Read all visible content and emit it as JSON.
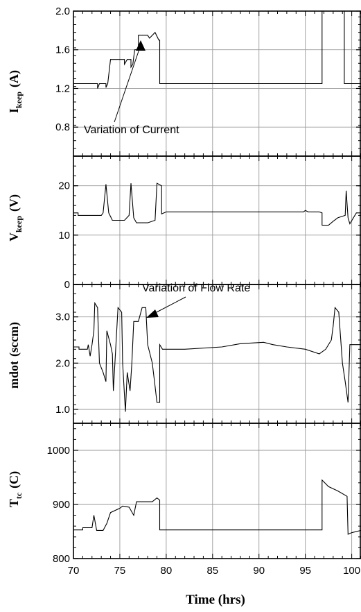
{
  "chart_data": [
    {
      "type": "line",
      "ylabel": "I",
      "ylabel_sub": "keep",
      "ylabel_unit": "(A)",
      "ylim": [
        0.5,
        2.0
      ],
      "yticks": [
        "0.8",
        "1.2",
        "1.6",
        "2.0"
      ],
      "ytick_values": [
        0.8,
        1.2,
        1.6,
        2.0
      ],
      "xlim": [
        70,
        101
      ],
      "grid": true,
      "annotation": "Variation of Current",
      "series": [
        {
          "points": [
            [
              70,
              1.25
            ],
            [
              72.6,
              1.25
            ],
            [
              72.6,
              1.2
            ],
            [
              72.8,
              1.25
            ],
            [
              73.5,
              1.25
            ],
            [
              73.5,
              1.21
            ],
            [
              73.7,
              1.25
            ],
            [
              74.0,
              1.5
            ],
            [
              75.5,
              1.5
            ],
            [
              75.5,
              1.45
            ],
            [
              75.8,
              1.5
            ],
            [
              76.2,
              1.5
            ],
            [
              76.2,
              1.42
            ],
            [
              76.4,
              1.45
            ],
            [
              76.6,
              1.6
            ],
            [
              77.0,
              1.6
            ],
            [
              77.0,
              1.75
            ],
            [
              78.0,
              1.75
            ],
            [
              78.2,
              1.72
            ],
            [
              78.8,
              1.78
            ],
            [
              79.2,
              1.7
            ],
            [
              79.3,
              1.7
            ],
            [
              79.3,
              1.25
            ],
            [
              90,
              1.25
            ],
            [
              96.8,
              1.25
            ],
            [
              96.8,
              2.0
            ],
            [
              99.2,
              2.0
            ],
            [
              99.2,
              1.25
            ],
            [
              101,
              1.25
            ]
          ]
        }
      ]
    },
    {
      "type": "line",
      "ylabel": "V",
      "ylabel_sub": "keep",
      "ylabel_unit": "(V)",
      "ylim": [
        0,
        26
      ],
      "yticks": [
        "0",
        "10",
        "20"
      ],
      "ytick_values": [
        0,
        10,
        20
      ],
      "xlim": [
        70,
        101
      ],
      "grid": true,
      "series": [
        {
          "points": [
            [
              70,
              14.5
            ],
            [
              70.5,
              14.5
            ],
            [
              70.5,
              14.0
            ],
            [
              73.0,
              14.0
            ],
            [
              73.2,
              14.5
            ],
            [
              73.5,
              20.3
            ],
            [
              73.8,
              14.5
            ],
            [
              74.2,
              13.0
            ],
            [
              75.5,
              13.0
            ],
            [
              76.0,
              14.0
            ],
            [
              76.2,
              20.5
            ],
            [
              76.5,
              13.5
            ],
            [
              76.8,
              12.5
            ],
            [
              78.0,
              12.5
            ],
            [
              78.8,
              13.0
            ],
            [
              79.0,
              20.5
            ],
            [
              79.5,
              20.0
            ],
            [
              79.5,
              14.3
            ],
            [
              80.0,
              14.7
            ],
            [
              94.8,
              14.7
            ],
            [
              95.0,
              15.0
            ],
            [
              95.3,
              14.7
            ],
            [
              96.5,
              14.7
            ],
            [
              96.8,
              14.5
            ],
            [
              96.8,
              12.0
            ],
            [
              97.5,
              12.0
            ],
            [
              98.0,
              12.8
            ],
            [
              98.5,
              13.5
            ],
            [
              99.3,
              14.0
            ],
            [
              99.4,
              19.0
            ],
            [
              99.6,
              13.5
            ],
            [
              99.8,
              12.3
            ],
            [
              100.5,
              14.5
            ],
            [
              101,
              14.5
            ]
          ]
        }
      ]
    },
    {
      "type": "line",
      "ylabel": "mdot",
      "ylabel_unit": "(sccm)",
      "ylim": [
        0.7,
        3.7
      ],
      "yticks": [
        "1.0",
        "2.0",
        "3.0"
      ],
      "ytick_values": [
        1.0,
        2.0,
        3.0
      ],
      "xlim": [
        70,
        101
      ],
      "grid": true,
      "annotation": "Variation of Flow Rate",
      "series": [
        {
          "points": [
            [
              70,
              2.35
            ],
            [
              70.6,
              2.35
            ],
            [
              70.6,
              2.3
            ],
            [
              71.5,
              2.3
            ],
            [
              71.6,
              2.4
            ],
            [
              71.8,
              2.15
            ],
            [
              72.0,
              2.4
            ],
            [
              72.2,
              2.7
            ],
            [
              72.3,
              3.3
            ],
            [
              72.6,
              3.2
            ],
            [
              72.8,
              2.0
            ],
            [
              73.2,
              1.8
            ],
            [
              73.5,
              1.6
            ],
            [
              73.6,
              2.7
            ],
            [
              74.0,
              2.4
            ],
            [
              74.2,
              2.2
            ],
            [
              74.3,
              1.4
            ],
            [
              74.8,
              3.2
            ],
            [
              75.2,
              3.1
            ],
            [
              75.3,
              2.0
            ],
            [
              75.6,
              0.95
            ],
            [
              75.8,
              1.8
            ],
            [
              76.1,
              1.4
            ],
            [
              76.3,
              2.0
            ],
            [
              76.5,
              2.9
            ],
            [
              77.0,
              2.9
            ],
            [
              77.4,
              3.2
            ],
            [
              77.8,
              3.2
            ],
            [
              78.0,
              2.4
            ],
            [
              78.5,
              2.0
            ],
            [
              78.8,
              1.5
            ],
            [
              79.0,
              1.15
            ],
            [
              79.3,
              1.15
            ],
            [
              79.3,
              2.4
            ],
            [
              79.6,
              2.3
            ],
            [
              82.0,
              2.3
            ],
            [
              86.0,
              2.35
            ],
            [
              88.0,
              2.42
            ],
            [
              90.5,
              2.45
            ],
            [
              91.5,
              2.4
            ],
            [
              93.0,
              2.35
            ],
            [
              95.0,
              2.3
            ],
            [
              96.5,
              2.2
            ],
            [
              97.2,
              2.3
            ],
            [
              97.8,
              2.5
            ],
            [
              98.0,
              2.8
            ],
            [
              98.2,
              3.2
            ],
            [
              98.6,
              3.1
            ],
            [
              99.0,
              2.0
            ],
            [
              99.3,
              1.6
            ],
            [
              99.6,
              1.15
            ],
            [
              99.8,
              2.4
            ],
            [
              101,
              2.4
            ]
          ]
        }
      ]
    },
    {
      "type": "line",
      "ylabel": "T",
      "ylabel_sub": "tc",
      "ylabel_unit": "(C)",
      "ylim": [
        800,
        1050
      ],
      "yticks": [
        "800",
        "900",
        "1000"
      ],
      "ytick_values": [
        800,
        900,
        1000
      ],
      "xlim": [
        70,
        101
      ],
      "xticks": [
        "70",
        "75",
        "80",
        "85",
        "90",
        "95",
        "100"
      ],
      "xtick_values": [
        70,
        75,
        80,
        85,
        90,
        95,
        100
      ],
      "xlabel": "Time (hrs)",
      "grid": true,
      "series": [
        {
          "points": [
            [
              70,
              853
            ],
            [
              71.0,
              853
            ],
            [
              71.0,
              857
            ],
            [
              72.0,
              857
            ],
            [
              72.2,
              880
            ],
            [
              72.5,
              852
            ],
            [
              73.2,
              852
            ],
            [
              73.6,
              865
            ],
            [
              74.0,
              885
            ],
            [
              75.0,
              893
            ],
            [
              75.3,
              897
            ],
            [
              76.0,
              895
            ],
            [
              76.5,
              880
            ],
            [
              76.8,
              905
            ],
            [
              78.5,
              905
            ],
            [
              79.0,
              912
            ],
            [
              79.3,
              908
            ],
            [
              79.3,
              853
            ],
            [
              82.0,
              853
            ],
            [
              90,
              853
            ],
            [
              96.8,
              853
            ],
            [
              96.8,
              945
            ],
            [
              97.5,
              933
            ],
            [
              98.5,
              925
            ],
            [
              99.5,
              915
            ],
            [
              99.6,
              845
            ],
            [
              100.0,
              848
            ],
            [
              101,
              852
            ]
          ]
        }
      ]
    }
  ]
}
